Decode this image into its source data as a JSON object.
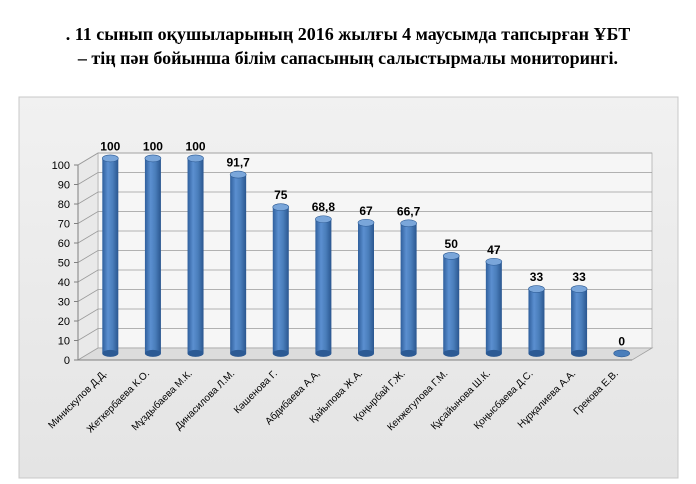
{
  "title": {
    "line1": ". 11 сынып оқушыларының 2016 жылғы 4 маусымда тапсырған  ҰБТ",
    "line2": "– тің пән бойынша  білім  сапасының  салыстырмалы  мониторингі."
  },
  "colors": {
    "panel_bg": "#ebebeb",
    "wall_bg": "#f6f6f6",
    "bar_fill": "#4a7ebb",
    "bar_dark": "#2c5a94",
    "bar_light": "#7aa6da",
    "grid": "#9a9a9a"
  },
  "chart_data": {
    "type": "bar",
    "title": "",
    "xlabel": "",
    "ylabel": "",
    "ylim": [
      0,
      100
    ],
    "yticks": [
      0,
      10,
      20,
      30,
      40,
      50,
      60,
      70,
      80,
      90,
      100
    ],
    "grid": true,
    "legend": "none",
    "categories": [
      "Минискулов Д.Д.",
      "Жеткербаева  К.О.",
      "Мұздыбаева М.К.",
      "Динасилова Л.М.",
      "Кәшенова  Г.",
      "Абдибаева А,А,",
      "Қайыпова Ж.А.",
      "Қоңырбай Г.Ж.",
      "Кенжегулова  Г.М.",
      "Құсайынова Ш.К.",
      "Қоңысбаева Д.С.",
      "Нұрқалиева А.А.",
      "Грекова Е.В."
    ],
    "values": [
      100,
      100,
      100,
      91.7,
      75,
      68.8,
      67,
      66.7,
      50,
      47,
      33,
      33,
      0
    ],
    "data_labels": [
      "100",
      "100",
      "100",
      "91,7",
      "75",
      "68,8",
      "67",
      "66,7",
      "50",
      "47",
      "33",
      "33",
      "0"
    ]
  }
}
